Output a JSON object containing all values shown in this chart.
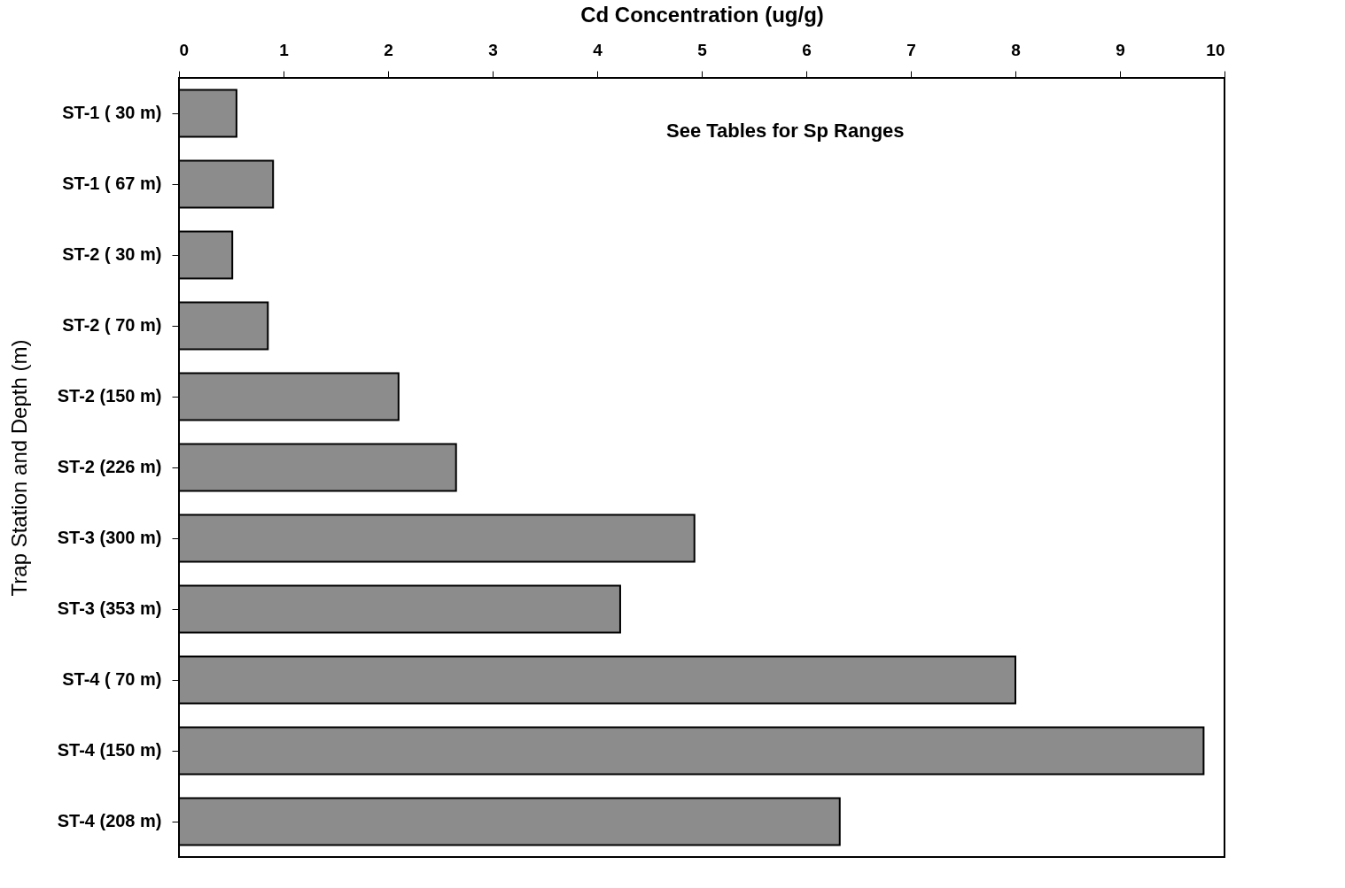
{
  "chart_data": {
    "type": "bar",
    "orientation": "horizontal",
    "xlabel": "Cd Concentration (ug/g)",
    "ylabel": "Trap Station and Depth (m)",
    "categories": [
      "ST-1 ( 30 m)",
      "ST-1 ( 67 m)",
      "ST-2 ( 30 m)",
      "ST-2 ( 70 m)",
      "ST-2 (150 m)",
      "ST-2 (226 m)",
      "ST-3 (300 m)",
      "ST-3 (353 m)",
      "ST-4 ( 70 m)",
      "ST-4 (150 m)",
      "ST-4 (208 m)"
    ],
    "values": [
      0.55,
      0.9,
      0.51,
      0.85,
      2.1,
      2.65,
      4.93,
      4.22,
      8.0,
      9.8,
      6.32
    ],
    "color": "#8c8c8c",
    "xlim": [
      0,
      10
    ],
    "xticks": [
      0,
      1,
      2,
      3,
      4,
      5,
      6,
      7,
      8,
      9,
      10
    ],
    "grid": false,
    "annotations": [
      "See Tables for Sp Ranges"
    ]
  }
}
